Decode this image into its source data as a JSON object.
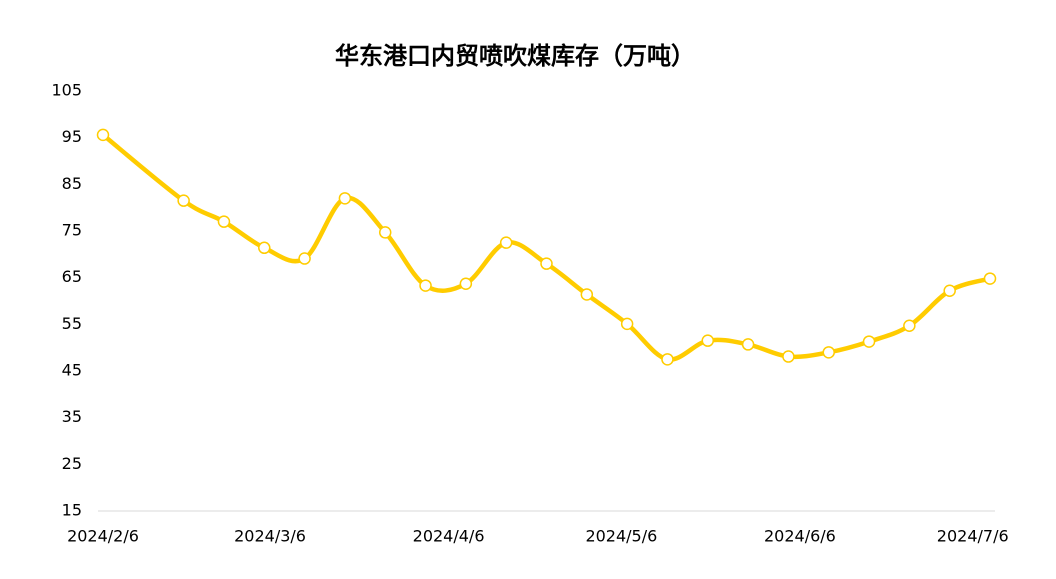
{
  "chart_data": {
    "type": "line",
    "title": "华东港口内贸喷吹煤库存（万吨）",
    "x": [
      "2024/2/6",
      "2024/2/20",
      "2024/2/27",
      "2024/3/5",
      "2024/3/12",
      "2024/3/19",
      "2024/3/26",
      "2024/4/2",
      "2024/4/9",
      "2024/4/16",
      "2024/4/23",
      "2024/4/30",
      "2024/5/7",
      "2024/5/14",
      "2024/5/21",
      "2024/5/28",
      "2024/6/4",
      "2024/6/11",
      "2024/6/18",
      "2024/6/25",
      "2024/7/2",
      "2024/7/9"
    ],
    "series": [
      {
        "name": "华东港口内贸喷吹煤库存",
        "color": "#ffcc00",
        "values": [
          95.6,
          81.5,
          77,
          71.4,
          69.1,
          82,
          74.7,
          63.3,
          63.7,
          72.5,
          68,
          61.4,
          55.1,
          47.5,
          51.5,
          50.7,
          48.1,
          49,
          51.3,
          54.7,
          62.2,
          64.8
        ]
      }
    ],
    "xlim": [
      "2024/2/6",
      "2024/7/9"
    ],
    "xticks": [
      "2024/2/6",
      "2024/3/6",
      "2024/4/6",
      "2024/5/6",
      "2024/6/6",
      "2024/7/6"
    ],
    "ylim": [
      15,
      105
    ],
    "yticks": [
      15,
      25,
      35,
      45,
      55,
      65,
      75,
      85,
      95,
      105
    ],
    "smooth": true
  }
}
